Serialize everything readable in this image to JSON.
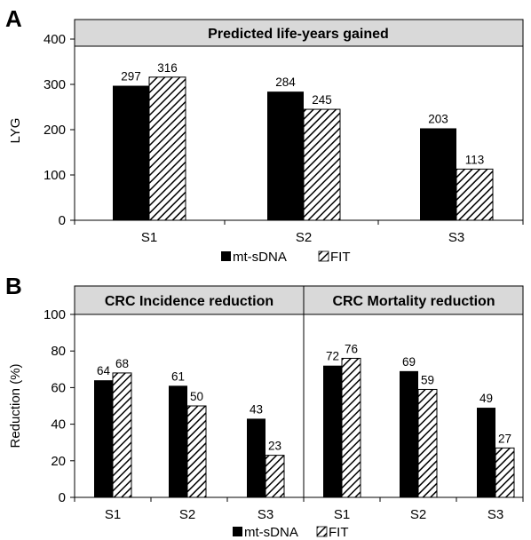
{
  "chart_data": [
    {
      "type": "bar",
      "panel_label": "A",
      "title": "Predicted life-years gained",
      "ylabel": "LYG",
      "xlabel": "",
      "ylim": [
        0,
        400
      ],
      "yticks": [
        0,
        100,
        200,
        300,
        400
      ],
      "categories": [
        "S1",
        "S2",
        "S3"
      ],
      "series": [
        {
          "name": "mt-sDNA",
          "values": [
            297,
            284,
            203
          ],
          "fill": "solid"
        },
        {
          "name": "FIT",
          "values": [
            316,
            245,
            113
          ],
          "fill": "hatched"
        }
      ],
      "legend": "bottom-center",
      "grid": false
    },
    {
      "type": "bar",
      "panel_label": "B",
      "ylabel": "Reduction (%)",
      "xlabel": "",
      "ylim": [
        0,
        100
      ],
      "yticks": [
        0,
        20,
        40,
        60,
        80,
        100
      ],
      "legend": "bottom-center",
      "grid": false,
      "legend_entries": [
        "mt-sDNA",
        "FIT"
      ],
      "subplots": [
        {
          "title": "CRC Incidence reduction",
          "categories": [
            "S1",
            "S2",
            "S3"
          ],
          "series": [
            {
              "name": "mt-sDNA",
              "values": [
                64,
                61,
                43
              ],
              "fill": "solid"
            },
            {
              "name": "FIT",
              "values": [
                68,
                50,
                23
              ],
              "fill": "hatched"
            }
          ]
        },
        {
          "title": "CRC Mortality reduction",
          "categories": [
            "S1",
            "S2",
            "S3"
          ],
          "series": [
            {
              "name": "mt-sDNA",
              "values": [
                72,
                69,
                49
              ],
              "fill": "solid"
            },
            {
              "name": "FIT",
              "values": [
                76,
                59,
                27
              ],
              "fill": "hatched"
            }
          ]
        }
      ]
    }
  ],
  "colors": {
    "bar_solid": "#000000",
    "header_bg": "#d9d9d9",
    "axis": "#000000",
    "hatch_bg": "#ffffff"
  }
}
